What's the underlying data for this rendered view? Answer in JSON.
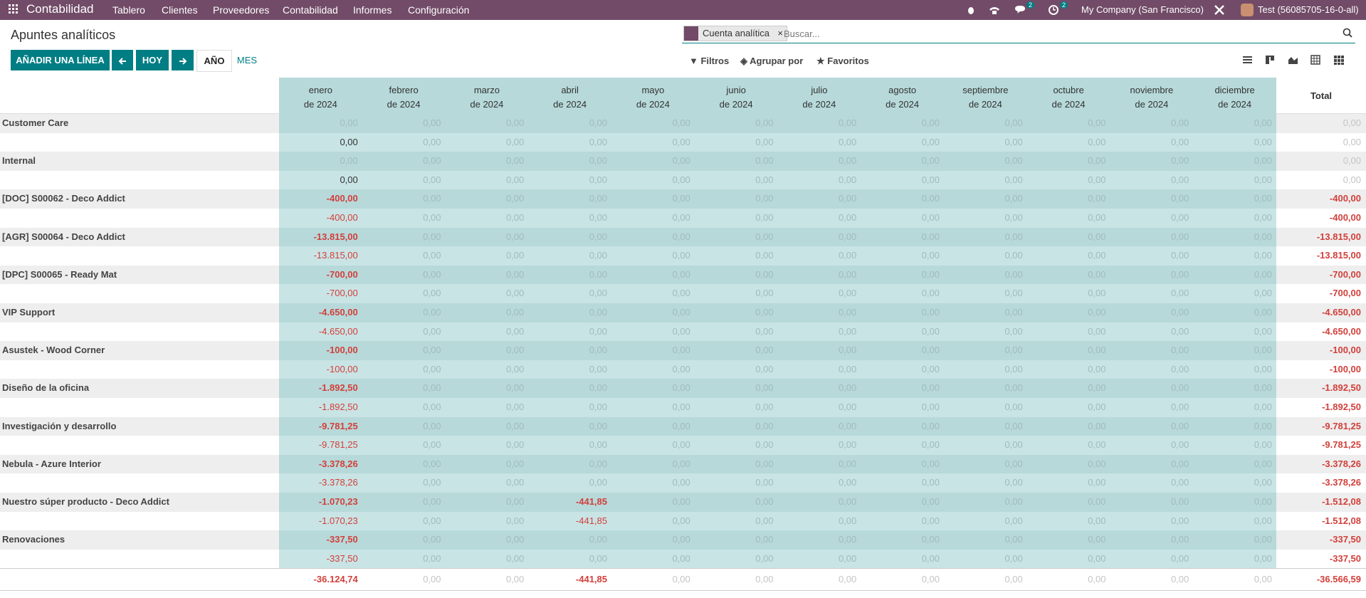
{
  "navbar": {
    "app": "Contabilidad",
    "menus": [
      "Tablero",
      "Clientes",
      "Proveedores",
      "Contabilidad",
      "Informes",
      "Configuración"
    ],
    "messages_badge": "2",
    "activity_badge": "2",
    "company": "My Company (San Francisco)",
    "user": "Test (56085705-16-0-all)"
  },
  "header": {
    "title": "Apuntes analíticos",
    "add_button": "AÑADIR UNA LÍNEA",
    "today_button": "HOY",
    "year_button": "AÑO",
    "month_button": "MES"
  },
  "search": {
    "facet": "Cuenta analítica",
    "placeholder": "Buscar...",
    "filters": "Filtros",
    "group_by": "Agrupar por",
    "favorites": "Favoritos"
  },
  "grid": {
    "columns": [
      {
        "month": "enero",
        "year": "de 2024"
      },
      {
        "month": "febrero",
        "year": "de 2024"
      },
      {
        "month": "marzo",
        "year": "de 2024"
      },
      {
        "month": "abril",
        "year": "de 2024"
      },
      {
        "month": "mayo",
        "year": "de 2024"
      },
      {
        "month": "junio",
        "year": "de 2024"
      },
      {
        "month": "julio",
        "year": "de 2024"
      },
      {
        "month": "agosto",
        "year": "de 2024"
      },
      {
        "month": "septiembre",
        "year": "de 2024"
      },
      {
        "month": "octubre",
        "year": "de 2024"
      },
      {
        "month": "noviembre",
        "year": "de 2024"
      },
      {
        "month": "diciembre",
        "year": "de 2024"
      }
    ],
    "total_header": "Total",
    "groups": [
      {
        "label": "Customer Care",
        "values": [
          "0,00",
          "0,00",
          "0,00",
          "0,00",
          "0,00",
          "0,00",
          "0,00",
          "0,00",
          "0,00",
          "0,00",
          "0,00",
          "0,00"
        ],
        "total": "0,00",
        "sub": {
          "values": [
            "0,00",
            "0,00",
            "0,00",
            "0,00",
            "0,00",
            "0,00",
            "0,00",
            "0,00",
            "0,00",
            "0,00",
            "0,00",
            "0,00"
          ],
          "total": "0,00"
        }
      },
      {
        "label": "Internal",
        "values": [
          "0,00",
          "0,00",
          "0,00",
          "0,00",
          "0,00",
          "0,00",
          "0,00",
          "0,00",
          "0,00",
          "0,00",
          "0,00",
          "0,00"
        ],
        "total": "0,00",
        "sub": {
          "values": [
            "0,00",
            "0,00",
            "0,00",
            "0,00",
            "0,00",
            "0,00",
            "0,00",
            "0,00",
            "0,00",
            "0,00",
            "0,00",
            "0,00"
          ],
          "total": "0,00"
        }
      },
      {
        "label": "[DOC] S00062 - Deco Addict",
        "values": [
          "-400,00",
          "0,00",
          "0,00",
          "0,00",
          "0,00",
          "0,00",
          "0,00",
          "0,00",
          "0,00",
          "0,00",
          "0,00",
          "0,00"
        ],
        "total": "-400,00",
        "sub": {
          "values": [
            "-400,00",
            "0,00",
            "0,00",
            "0,00",
            "0,00",
            "0,00",
            "0,00",
            "0,00",
            "0,00",
            "0,00",
            "0,00",
            "0,00"
          ],
          "total": "-400,00"
        }
      },
      {
        "label": "[AGR] S00064 - Deco Addict",
        "values": [
          "-13.815,00",
          "0,00",
          "0,00",
          "0,00",
          "0,00",
          "0,00",
          "0,00",
          "0,00",
          "0,00",
          "0,00",
          "0,00",
          "0,00"
        ],
        "total": "-13.815,00",
        "sub": {
          "values": [
            "-13.815,00",
            "0,00",
            "0,00",
            "0,00",
            "0,00",
            "0,00",
            "0,00",
            "0,00",
            "0,00",
            "0,00",
            "0,00",
            "0,00"
          ],
          "total": "-13.815,00"
        }
      },
      {
        "label": "[DPC] S00065 - Ready Mat",
        "values": [
          "-700,00",
          "0,00",
          "0,00",
          "0,00",
          "0,00",
          "0,00",
          "0,00",
          "0,00",
          "0,00",
          "0,00",
          "0,00",
          "0,00"
        ],
        "total": "-700,00",
        "sub": {
          "values": [
            "-700,00",
            "0,00",
            "0,00",
            "0,00",
            "0,00",
            "0,00",
            "0,00",
            "0,00",
            "0,00",
            "0,00",
            "0,00",
            "0,00"
          ],
          "total": "-700,00"
        }
      },
      {
        "label": "VIP Support",
        "values": [
          "-4.650,00",
          "0,00",
          "0,00",
          "0,00",
          "0,00",
          "0,00",
          "0,00",
          "0,00",
          "0,00",
          "0,00",
          "0,00",
          "0,00"
        ],
        "total": "-4.650,00",
        "sub": {
          "values": [
            "-4.650,00",
            "0,00",
            "0,00",
            "0,00",
            "0,00",
            "0,00",
            "0,00",
            "0,00",
            "0,00",
            "0,00",
            "0,00",
            "0,00"
          ],
          "total": "-4.650,00"
        }
      },
      {
        "label": "Asustek - Wood Corner",
        "values": [
          "-100,00",
          "0,00",
          "0,00",
          "0,00",
          "0,00",
          "0,00",
          "0,00",
          "0,00",
          "0,00",
          "0,00",
          "0,00",
          "0,00"
        ],
        "total": "-100,00",
        "sub": {
          "values": [
            "-100,00",
            "0,00",
            "0,00",
            "0,00",
            "0,00",
            "0,00",
            "0,00",
            "0,00",
            "0,00",
            "0,00",
            "0,00",
            "0,00"
          ],
          "total": "-100,00"
        }
      },
      {
        "label": "Diseño de la oficina",
        "values": [
          "-1.892,50",
          "0,00",
          "0,00",
          "0,00",
          "0,00",
          "0,00",
          "0,00",
          "0,00",
          "0,00",
          "0,00",
          "0,00",
          "0,00"
        ],
        "total": "-1.892,50",
        "sub": {
          "values": [
            "-1.892,50",
            "0,00",
            "0,00",
            "0,00",
            "0,00",
            "0,00",
            "0,00",
            "0,00",
            "0,00",
            "0,00",
            "0,00",
            "0,00"
          ],
          "total": "-1.892,50"
        }
      },
      {
        "label": "Investigación y desarrollo",
        "values": [
          "-9.781,25",
          "0,00",
          "0,00",
          "0,00",
          "0,00",
          "0,00",
          "0,00",
          "0,00",
          "0,00",
          "0,00",
          "0,00",
          "0,00"
        ],
        "total": "-9.781,25",
        "sub": {
          "values": [
            "-9.781,25",
            "0,00",
            "0,00",
            "0,00",
            "0,00",
            "0,00",
            "0,00",
            "0,00",
            "0,00",
            "0,00",
            "0,00",
            "0,00"
          ],
          "total": "-9.781,25"
        }
      },
      {
        "label": "Nebula - Azure Interior",
        "values": [
          "-3.378,26",
          "0,00",
          "0,00",
          "0,00",
          "0,00",
          "0,00",
          "0,00",
          "0,00",
          "0,00",
          "0,00",
          "0,00",
          "0,00"
        ],
        "total": "-3.378,26",
        "sub": {
          "values": [
            "-3.378,26",
            "0,00",
            "0,00",
            "0,00",
            "0,00",
            "0,00",
            "0,00",
            "0,00",
            "0,00",
            "0,00",
            "0,00",
            "0,00"
          ],
          "total": "-3.378,26"
        }
      },
      {
        "label": "Nuestro súper producto - Deco Addict",
        "values": [
          "-1.070,23",
          "0,00",
          "0,00",
          "-441,85",
          "0,00",
          "0,00",
          "0,00",
          "0,00",
          "0,00",
          "0,00",
          "0,00",
          "0,00"
        ],
        "total": "-1.512,08",
        "sub": {
          "values": [
            "-1.070,23",
            "0,00",
            "0,00",
            "-441,85",
            "0,00",
            "0,00",
            "0,00",
            "0,00",
            "0,00",
            "0,00",
            "0,00",
            "0,00"
          ],
          "total": "-1.512,08"
        }
      },
      {
        "label": "Renovaciones",
        "values": [
          "-337,50",
          "0,00",
          "0,00",
          "0,00",
          "0,00",
          "0,00",
          "0,00",
          "0,00",
          "0,00",
          "0,00",
          "0,00",
          "0,00"
        ],
        "total": "-337,50",
        "sub": {
          "values": [
            "-337,50",
            "0,00",
            "0,00",
            "0,00",
            "0,00",
            "0,00",
            "0,00",
            "0,00",
            "0,00",
            "0,00",
            "0,00",
            "0,00"
          ],
          "total": "-337,50"
        }
      }
    ],
    "footer": {
      "values": [
        "-36.124,74",
        "0,00",
        "0,00",
        "-441,85",
        "0,00",
        "0,00",
        "0,00",
        "0,00",
        "0,00",
        "0,00",
        "0,00",
        "0,00"
      ],
      "total": "-36.566,59"
    }
  }
}
